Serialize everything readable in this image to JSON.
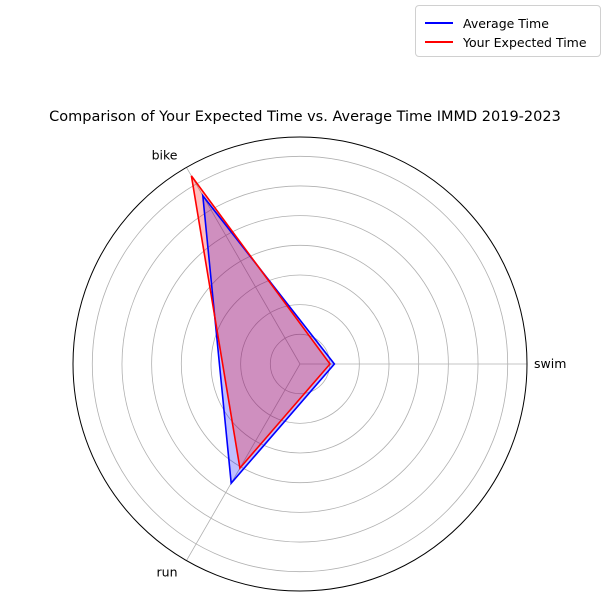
{
  "chart_data": {
    "type": "radar",
    "title": "Comparison of Your Expected Time vs. Average Time IMMD 2019-2023",
    "categories": [
      "swim",
      "bike",
      "run"
    ],
    "series": [
      {
        "name": "Average Time",
        "values": [
          1.16,
          6.55,
          4.64
        ],
        "color": "#0000ff",
        "fill": "#0000ff"
      },
      {
        "name": "Your Expected Time",
        "values": [
          1.01,
          7.32,
          4.05
        ],
        "color": "#ff0000",
        "fill": "#ff0000"
      }
    ],
    "rlim": [
      0,
      7.65
    ],
    "grid": true,
    "legend": "top-right"
  }
}
